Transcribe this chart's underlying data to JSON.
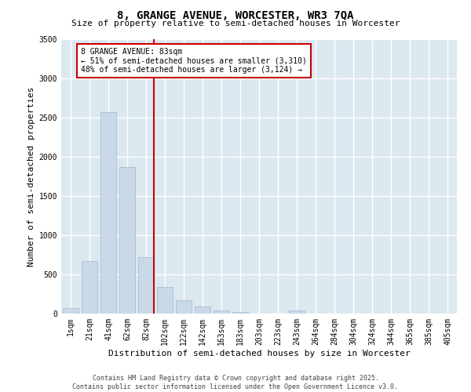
{
  "title_line1": "8, GRANGE AVENUE, WORCESTER, WR3 7QA",
  "title_line2": "Size of property relative to semi-detached houses in Worcester",
  "xlabel": "Distribution of semi-detached houses by size in Worcester",
  "ylabel": "Number of semi-detached properties",
  "footer_line1": "Contains HM Land Registry data © Crown copyright and database right 2025.",
  "footer_line2": "Contains public sector information licensed under the Open Government Licence v3.0.",
  "bar_categories": [
    "1sqm",
    "21sqm",
    "41sqm",
    "62sqm",
    "82sqm",
    "102sqm",
    "122sqm",
    "142sqm",
    "163sqm",
    "183sqm",
    "203sqm",
    "223sqm",
    "243sqm",
    "264sqm",
    "284sqm",
    "304sqm",
    "324sqm",
    "344sqm",
    "365sqm",
    "385sqm",
    "405sqm"
  ],
  "bar_values": [
    75,
    670,
    2570,
    1870,
    720,
    345,
    175,
    95,
    45,
    20,
    0,
    0,
    40,
    0,
    0,
    0,
    0,
    0,
    0,
    0,
    0
  ],
  "bar_color": "#c9d9e8",
  "bar_edge_color": "#a0b8cc",
  "ylim": [
    0,
    3500
  ],
  "yticks": [
    0,
    500,
    1000,
    1500,
    2000,
    2500,
    3000,
    3500
  ],
  "vline_color": "#cc0000",
  "annotation_title": "8 GRANGE AVENUE: 83sqm",
  "annotation_line2": "← 51% of semi-detached houses are smaller (3,310)",
  "annotation_line3": "48% of semi-detached houses are larger (3,124) →",
  "annotation_box_color": "#cc0000",
  "bg_color": "#dce8f0",
  "grid_color": "#ffffff",
  "title_fontsize": 10,
  "subtitle_fontsize": 8,
  "ylabel_fontsize": 8,
  "xlabel_fontsize": 8,
  "tick_fontsize": 7,
  "footer_fontsize": 6,
  "ann_fontsize": 7
}
